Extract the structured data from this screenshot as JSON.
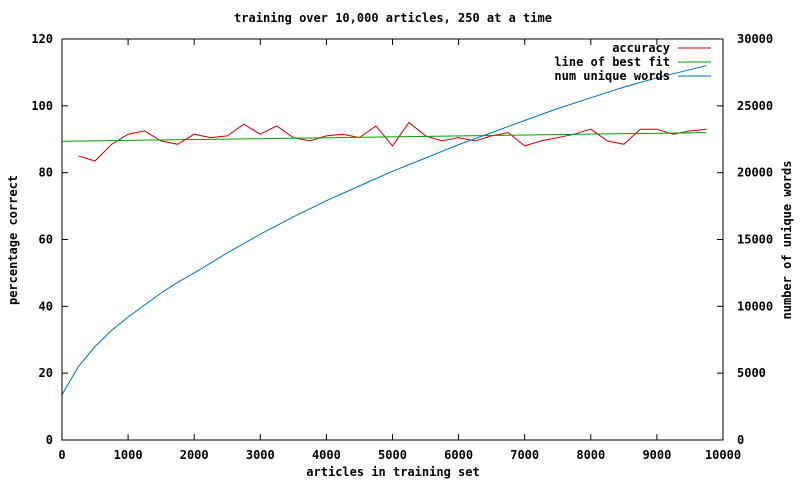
{
  "chart_data": {
    "type": "line",
    "title": "training over 10,000 articles, 250 at a time",
    "xlabel": "articles in training set",
    "ylabel": "percentage correct",
    "y2label": "number of unique words",
    "xlim": [
      0,
      10000
    ],
    "ylim": [
      0,
      120
    ],
    "y2lim": [
      0,
      30000
    ],
    "xticks": [
      0,
      1000,
      2000,
      3000,
      4000,
      5000,
      6000,
      7000,
      8000,
      9000,
      10000
    ],
    "yticks": [
      0,
      20,
      40,
      60,
      80,
      100,
      120
    ],
    "y2ticks": [
      0,
      5000,
      10000,
      15000,
      20000,
      25000,
      30000
    ],
    "grid": false,
    "legend": "top-right",
    "series": [
      {
        "name": "accuracy",
        "axis": "left",
        "color": "#cc0000",
        "x": [
          250,
          500,
          750,
          1000,
          1250,
          1500,
          1750,
          2000,
          2250,
          2500,
          2750,
          3000,
          3250,
          3500,
          3750,
          4000,
          4250,
          4500,
          4750,
          5000,
          5250,
          5500,
          5750,
          6000,
          6250,
          6500,
          6750,
          7000,
          7250,
          7500,
          7750,
          8000,
          8250,
          8500,
          8750,
          9000,
          9250,
          9500,
          9750
        ],
        "y": [
          85,
          83.5,
          88.5,
          91.5,
          92.5,
          89.5,
          88.5,
          91.5,
          90.5,
          91,
          94.5,
          91.5,
          94,
          90.5,
          89.5,
          91,
          91.5,
          90.5,
          94,
          88,
          95,
          91,
          89.5,
          90.5,
          89.5,
          91,
          92,
          88,
          89.5,
          90.5,
          91.5,
          93,
          89.5,
          88.5,
          93,
          93,
          91.5,
          92.5,
          93
        ]
      },
      {
        "name": "line of best fit",
        "axis": "left",
        "color": "#00a000",
        "x": [
          0,
          9750
        ],
        "y": [
          89.4,
          92
        ]
      },
      {
        "name": "num unique words",
        "axis": "right",
        "color": "#0070c0",
        "x": [
          0,
          250,
          500,
          750,
          1000,
          1250,
          1500,
          1750,
          2000,
          2500,
          3000,
          3500,
          4000,
          4500,
          5000,
          5500,
          6000,
          6500,
          7000,
          7500,
          8000,
          8500,
          9000,
          9500,
          9750
        ],
        "y": [
          3400,
          5500,
          7000,
          8200,
          9200,
          10100,
          11000,
          11800,
          12500,
          14000,
          15400,
          16700,
          17900,
          19000,
          20100,
          21100,
          22100,
          23000,
          23900,
          24800,
          25600,
          26400,
          27100,
          27700,
          28000
        ]
      }
    ]
  }
}
